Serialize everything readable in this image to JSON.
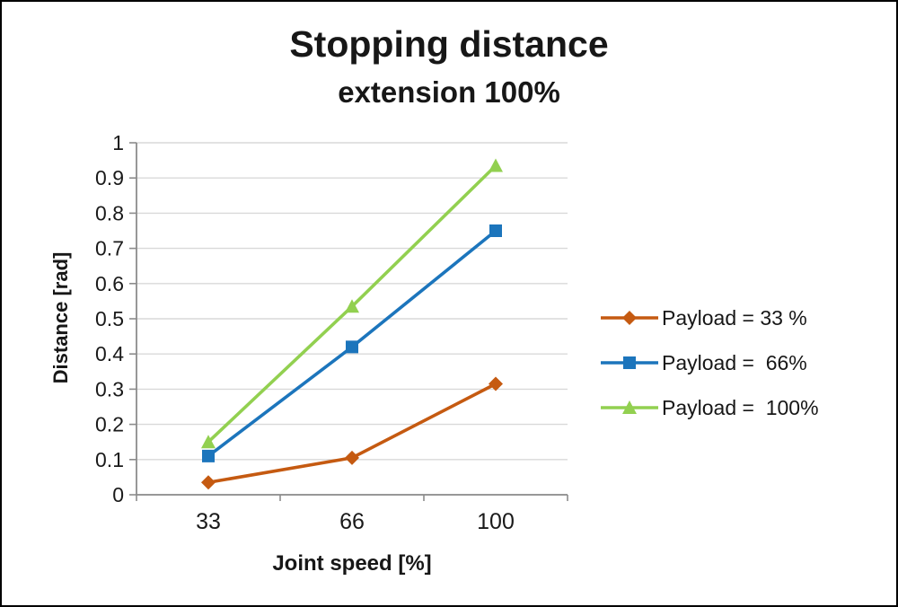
{
  "title": "Stopping distance",
  "subtitle": "extension 100%",
  "chart_data": {
    "type": "line",
    "title": "Stopping distance",
    "subtitle": "extension 100%",
    "xlabel": "Joint speed [%]",
    "ylabel": "Distance [rad]",
    "categories": [
      "33",
      "66",
      "100"
    ],
    "y_ticks": [
      "0",
      "0.1",
      "0.2",
      "0.3",
      "0.4",
      "0.5",
      "0.6",
      "0.7",
      "0.8",
      "0.9",
      "1"
    ],
    "ylim": [
      0,
      1
    ],
    "grid": "horizontal",
    "legend_position": "right",
    "series": [
      {
        "name": "Payload = 33 %",
        "marker": "diamond",
        "color": "#C55A11",
        "values": [
          0.035,
          0.105,
          0.315
        ]
      },
      {
        "name": "Payload =  66%",
        "marker": "square",
        "color": "#1C75BC",
        "values": [
          0.11,
          0.42,
          0.75
        ]
      },
      {
        "name": "Payload =  100%",
        "marker": "triangle",
        "color": "#92D050",
        "values": [
          0.15,
          0.535,
          0.935
        ]
      }
    ]
  },
  "colors": {
    "grid": "#D9D9D9",
    "axis": "#8C8C8C",
    "text": "#1A1A1A",
    "background": "#FFFFFF",
    "border": "#000000"
  }
}
